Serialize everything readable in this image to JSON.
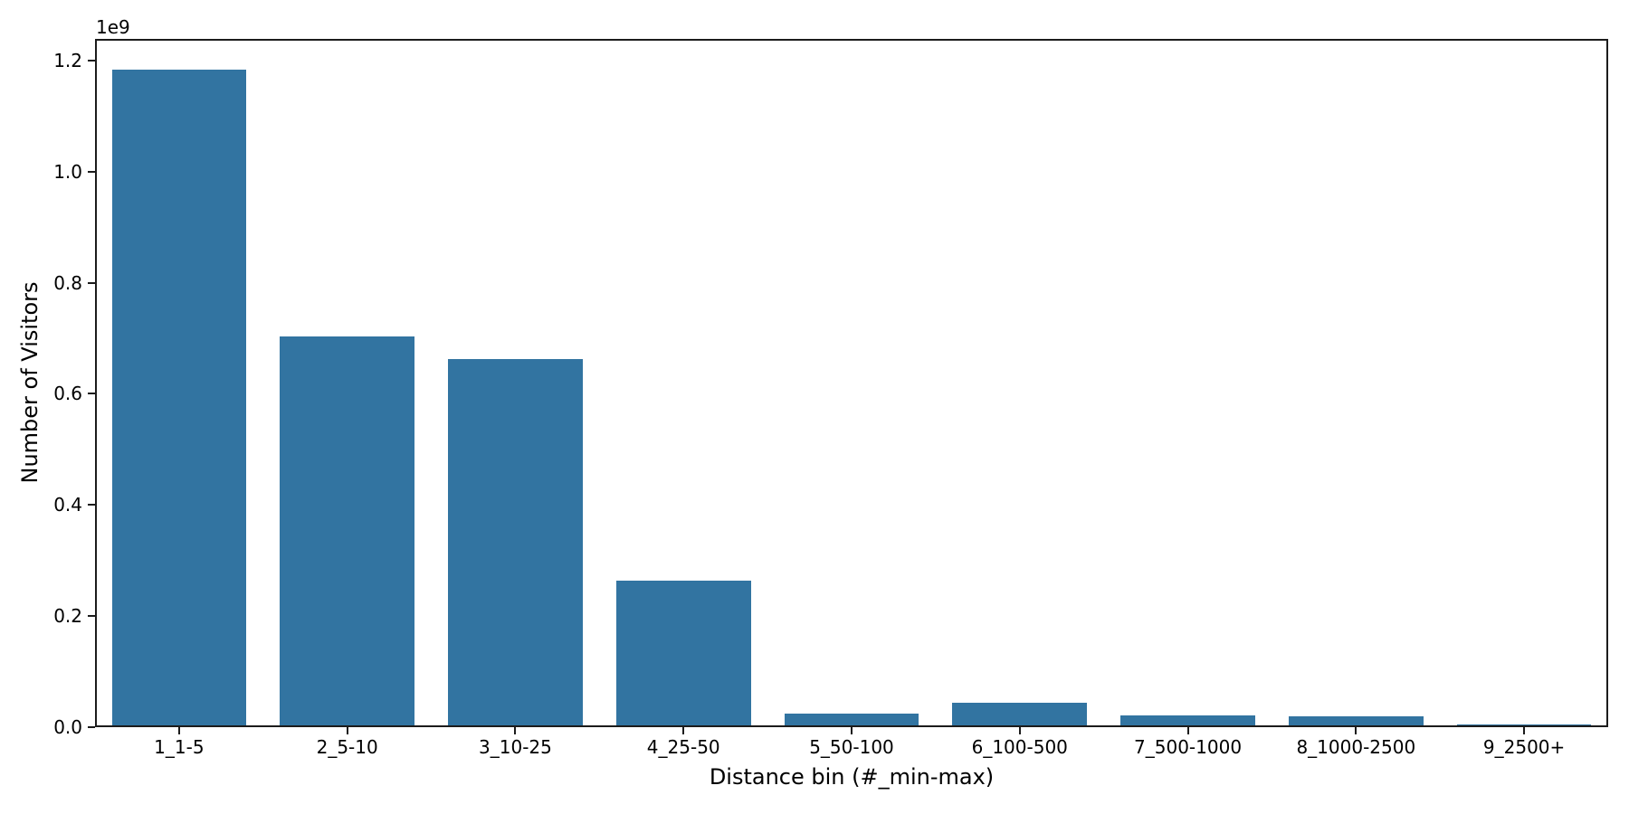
{
  "chart_data": {
    "type": "bar",
    "title": "",
    "xlabel": "Distance bin (#_min-max)",
    "ylabel": "Number of Visitors",
    "y_axis_offset_text": "1e9",
    "categories": [
      "1_1-5",
      "2_5-10",
      "3_10-25",
      "4_25-50",
      "5_50-100",
      "6_100-500",
      "7_500-1000",
      "8_1000-2500",
      "9_2500+"
    ],
    "values": [
      1180000000,
      700000000,
      660000000,
      261000000,
      22000000,
      40000000,
      18000000,
      16000000,
      1000000
    ],
    "ylim": [
      0,
      1239000000
    ],
    "yticks": {
      "values": [
        0,
        200000000,
        400000000,
        600000000,
        800000000,
        1000000000,
        1200000000
      ],
      "labels": [
        "0.0",
        "0.2",
        "0.4",
        "0.6",
        "0.8",
        "1.0",
        "1.2"
      ]
    },
    "bar_color": "#3274a1",
    "axis_color": "#1c1c1c",
    "background": "#ffffff",
    "grid": false,
    "legend": false,
    "bar_width_fraction": 0.8
  }
}
